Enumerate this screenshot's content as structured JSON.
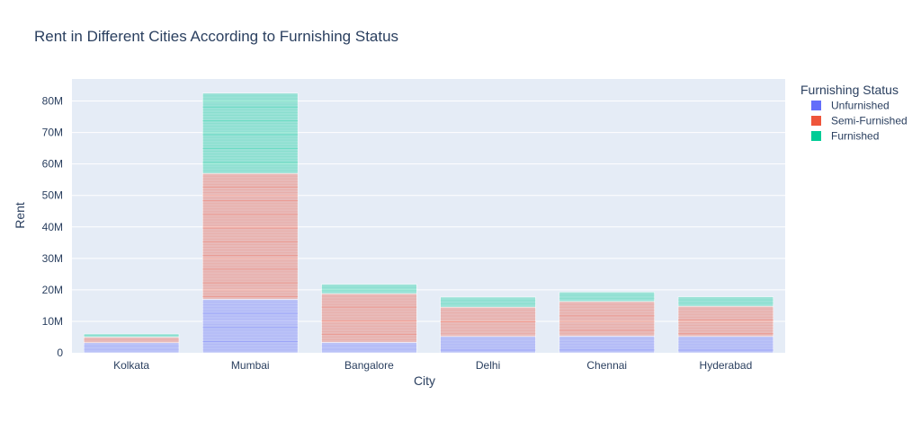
{
  "chart_data": {
    "type": "bar",
    "barmode": "stack",
    "title": "Rent in Different Cities According to Furnishing Status",
    "xlabel": "City",
    "ylabel": "Rent",
    "categories": [
      "Kolkata",
      "Mumbai",
      "Bangalore",
      "Delhi",
      "Chennai",
      "Hyderabad"
    ],
    "yticks": [
      {
        "value": 0,
        "label": "0"
      },
      {
        "value": 10000000,
        "label": "10M"
      },
      {
        "value": 20000000,
        "label": "20M"
      },
      {
        "value": 30000000,
        "label": "30M"
      },
      {
        "value": 40000000,
        "label": "40M"
      },
      {
        "value": 50000000,
        "label": "50M"
      },
      {
        "value": 60000000,
        "label": "60M"
      },
      {
        "value": 70000000,
        "label": "70M"
      },
      {
        "value": 80000000,
        "label": "80M"
      }
    ],
    "ylim": [
      0,
      87000000
    ],
    "grid": true,
    "legend": {
      "title": "Furnishing Status",
      "placement": "right"
    },
    "series": [
      {
        "name": "Unfurnished",
        "color": "#636efa",
        "values": [
          3200000,
          17000000,
          3300000,
          5200000,
          5300000,
          5200000
        ]
      },
      {
        "name": "Semi-Furnished",
        "color": "#ef553b",
        "values": [
          1800000,
          40000000,
          15500000,
          9300000,
          11000000,
          9600000
        ]
      },
      {
        "name": "Furnished",
        "color": "#00cc96",
        "values": [
          1000000,
          25500000,
          3000000,
          3200000,
          3000000,
          3000000
        ]
      }
    ]
  }
}
